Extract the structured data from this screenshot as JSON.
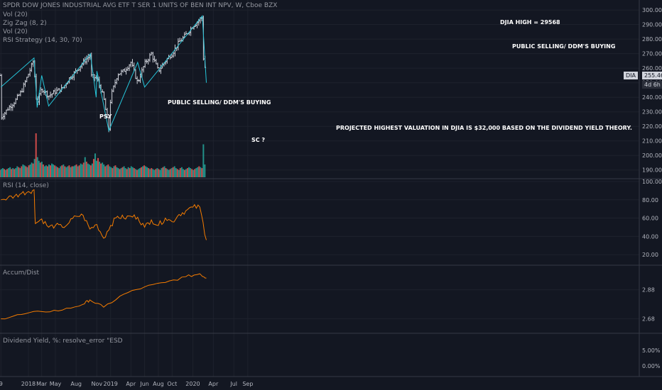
{
  "header": {
    "symbol_title": "SPDR DOW JONES INDUSTRIAL AVG ETF T SER 1 UNITS OF BEN INT NPV, W, Cboe BZX",
    "studies": [
      "Vol (20)",
      "Zig Zag (8, 2)",
      "Vol (20)",
      "RSI Strategy (14, 30, 70)"
    ]
  },
  "annotations": {
    "djia_high": "DJIA HIGH = 29568",
    "public_selling_right": "PUBLIC SELLING/ DDM'S BUYING",
    "public_selling_mid": "PUBLIC SELLING/ DDM'S BUYING",
    "psy": "PSY",
    "sc": "SC ?",
    "projection": "PROJECTED HIGHEST VALUATION IN DJIA IS $32,000 BASED ON THE DIVIDEND YIELD THEORY."
  },
  "price_badge": {
    "symbol": "DIA",
    "value": "255.46",
    "countdown": "4d 6h"
  },
  "panes": {
    "rsi_title": "RSI (14, close)",
    "accum_title": "Accum/Dist",
    "dividend_title": "Dividend Yield, %: resolve_error \"ESD"
  },
  "x_axis_labels": [
    "9",
    "2018",
    "Mar",
    "May",
    "Aug",
    "Nov",
    "2019",
    "Apr",
    "Jun",
    "Aug",
    "Oct",
    "2020",
    "Apr",
    "Jul",
    "Sep"
  ],
  "colors": {
    "background": "#131722",
    "up": "#26a69a",
    "down": "#ef5350",
    "zigzag": "#26c6da",
    "oscillator": "#f57c00",
    "bar": "#d1d4dc",
    "badge": "#d1d4dc"
  },
  "chart_data": [
    {
      "type": "line",
      "title": "SPDR DOW JONES INDUSTRIAL AVG ETF T SER 1 UNITS OF BEN INT NPV, W, Cboe BZX",
      "pane": "price",
      "y_ticks": [
        190,
        200,
        210,
        220,
        230,
        240,
        250,
        260,
        270,
        280,
        290,
        300
      ],
      "ylim": [
        185,
        303
      ],
      "series": [
        {
          "name": "DIA",
          "x": [
            "2017-09",
            "2017-10",
            "2017-11",
            "2017-12",
            "2018-01",
            "2018-01-26",
            "2018-02",
            "2018-02-09",
            "2018-03",
            "2018-04",
            "2018-05",
            "2018-06",
            "2018-07",
            "2018-08",
            "2018-09",
            "2018-10-03",
            "2018-10",
            "2018-11",
            "2018-12",
            "2018-12-24",
            "2019-01",
            "2019-02",
            "2019-03",
            "2019-04",
            "2019-05",
            "2019-06",
            "2019-07",
            "2019-08",
            "2019-09",
            "2019-10",
            "2019-11",
            "2019-12",
            "2020-01",
            "2020-02-12",
            "2020-02",
            "2020-03"
          ],
          "values": [
            226,
            232,
            237,
            244,
            256,
            266,
            243,
            236,
            246,
            241,
            244,
            246,
            253,
            258,
            264,
            269,
            255,
            253,
            240,
            218,
            240,
            256,
            258,
            264,
            250,
            263,
            270,
            258,
            265,
            270,
            278,
            283,
            289,
            295,
            282,
            255
          ]
        },
        {
          "name": "Zig Zag (8, 2)",
          "x": [
            "2017-09",
            "2018-01-26",
            "2018-02-09",
            "2018-03",
            "2018-04",
            "2018-10-03",
            "2018-10-29",
            "2018-11",
            "2018-12-24",
            "2019-05",
            "2019-06",
            "2020-02-12",
            "2020-03"
          ],
          "values": [
            247,
            267,
            233,
            255,
            234,
            270,
            240,
            258,
            217,
            264,
            247,
            296,
            250
          ]
        }
      ]
    },
    {
      "type": "bar",
      "pane": "volume",
      "title": "Vol (20)",
      "note": "weekly volume histogram, relative heights",
      "values": [
        8,
        9,
        10,
        9,
        8,
        9,
        10,
        11,
        9,
        10,
        9,
        10,
        12,
        11,
        10,
        12,
        14,
        13,
        12,
        11,
        13,
        14,
        16,
        15,
        20,
        48,
        22,
        18,
        16,
        17,
        14,
        12,
        13,
        12,
        14,
        13,
        15,
        14,
        13,
        12,
        11,
        10,
        12,
        13,
        14,
        12,
        11,
        12,
        13,
        11,
        12,
        12,
        13,
        14,
        12,
        13,
        15,
        14,
        16,
        22,
        17,
        15,
        14,
        13,
        15,
        20,
        26,
        18,
        21,
        17,
        15,
        16,
        14,
        12,
        13,
        14,
        12,
        11,
        10,
        12,
        13,
        11,
        10,
        9,
        10,
        11,
        12,
        10,
        9,
        11,
        10,
        12,
        11,
        10,
        9,
        8,
        9,
        10,
        11,
        12,
        13,
        12,
        11,
        10,
        9,
        10,
        9,
        8,
        9,
        10,
        9,
        8,
        10,
        11,
        12,
        10,
        9,
        8,
        9,
        10,
        11,
        12,
        10,
        9,
        8,
        10,
        11,
        9,
        8,
        9,
        10,
        11,
        10,
        9,
        8,
        9,
        10,
        11,
        12,
        11,
        10,
        36,
        14
      ]
    },
    {
      "type": "line",
      "pane": "rsi",
      "title": "RSI (14, close)",
      "y_ticks": [
        20,
        40,
        60,
        80,
        100
      ],
      "ylim": [
        10,
        100
      ],
      "series": [
        {
          "name": "RSI (14, close)",
          "x": [
            "2017-09",
            "2017-10",
            "2017-11",
            "2017-12",
            "2018-01",
            "2018-01-26",
            "2018-02",
            "2018-03",
            "2018-04",
            "2018-05",
            "2018-06",
            "2018-07",
            "2018-08",
            "2018-09",
            "2018-10",
            "2018-11",
            "2018-12",
            "2019-01",
            "2019-02",
            "2019-03",
            "2019-04",
            "2019-05",
            "2019-06",
            "2019-07",
            "2019-08",
            "2019-09",
            "2019-10",
            "2019-11",
            "2019-12",
            "2020-01",
            "2020-02",
            "2020-03"
          ],
          "values": [
            80,
            82,
            84,
            87,
            89,
            91,
            54,
            59,
            50,
            52,
            50,
            55,
            62,
            63,
            48,
            53,
            38,
            52,
            62,
            60,
            62,
            61,
            50,
            58,
            52,
            60,
            56,
            64,
            68,
            72,
            72,
            36
          ]
        }
      ]
    },
    {
      "type": "line",
      "pane": "accum_dist",
      "title": "Accum/Dist",
      "y_ticks": [
        2.68,
        2.88
      ],
      "series": [
        {
          "name": "Accum/Dist",
          "x": [
            "2017-09",
            "2017-12",
            "2018-03",
            "2018-06",
            "2018-09",
            "2018-10",
            "2018-12",
            "2019-03",
            "2019-06",
            "2019-09",
            "2019-12",
            "2020-02",
            "2020-03"
          ],
          "values": [
            2.68,
            2.71,
            2.73,
            2.74,
            2.78,
            2.81,
            2.76,
            2.85,
            2.9,
            2.93,
            2.97,
            2.99,
            2.96
          ]
        }
      ]
    },
    {
      "type": "line",
      "pane": "dividend_yield",
      "title": "Dividend Yield, %: resolve_error \"ESD",
      "y_ticks": [
        "5.00%",
        "0.00%"
      ],
      "series": []
    }
  ]
}
